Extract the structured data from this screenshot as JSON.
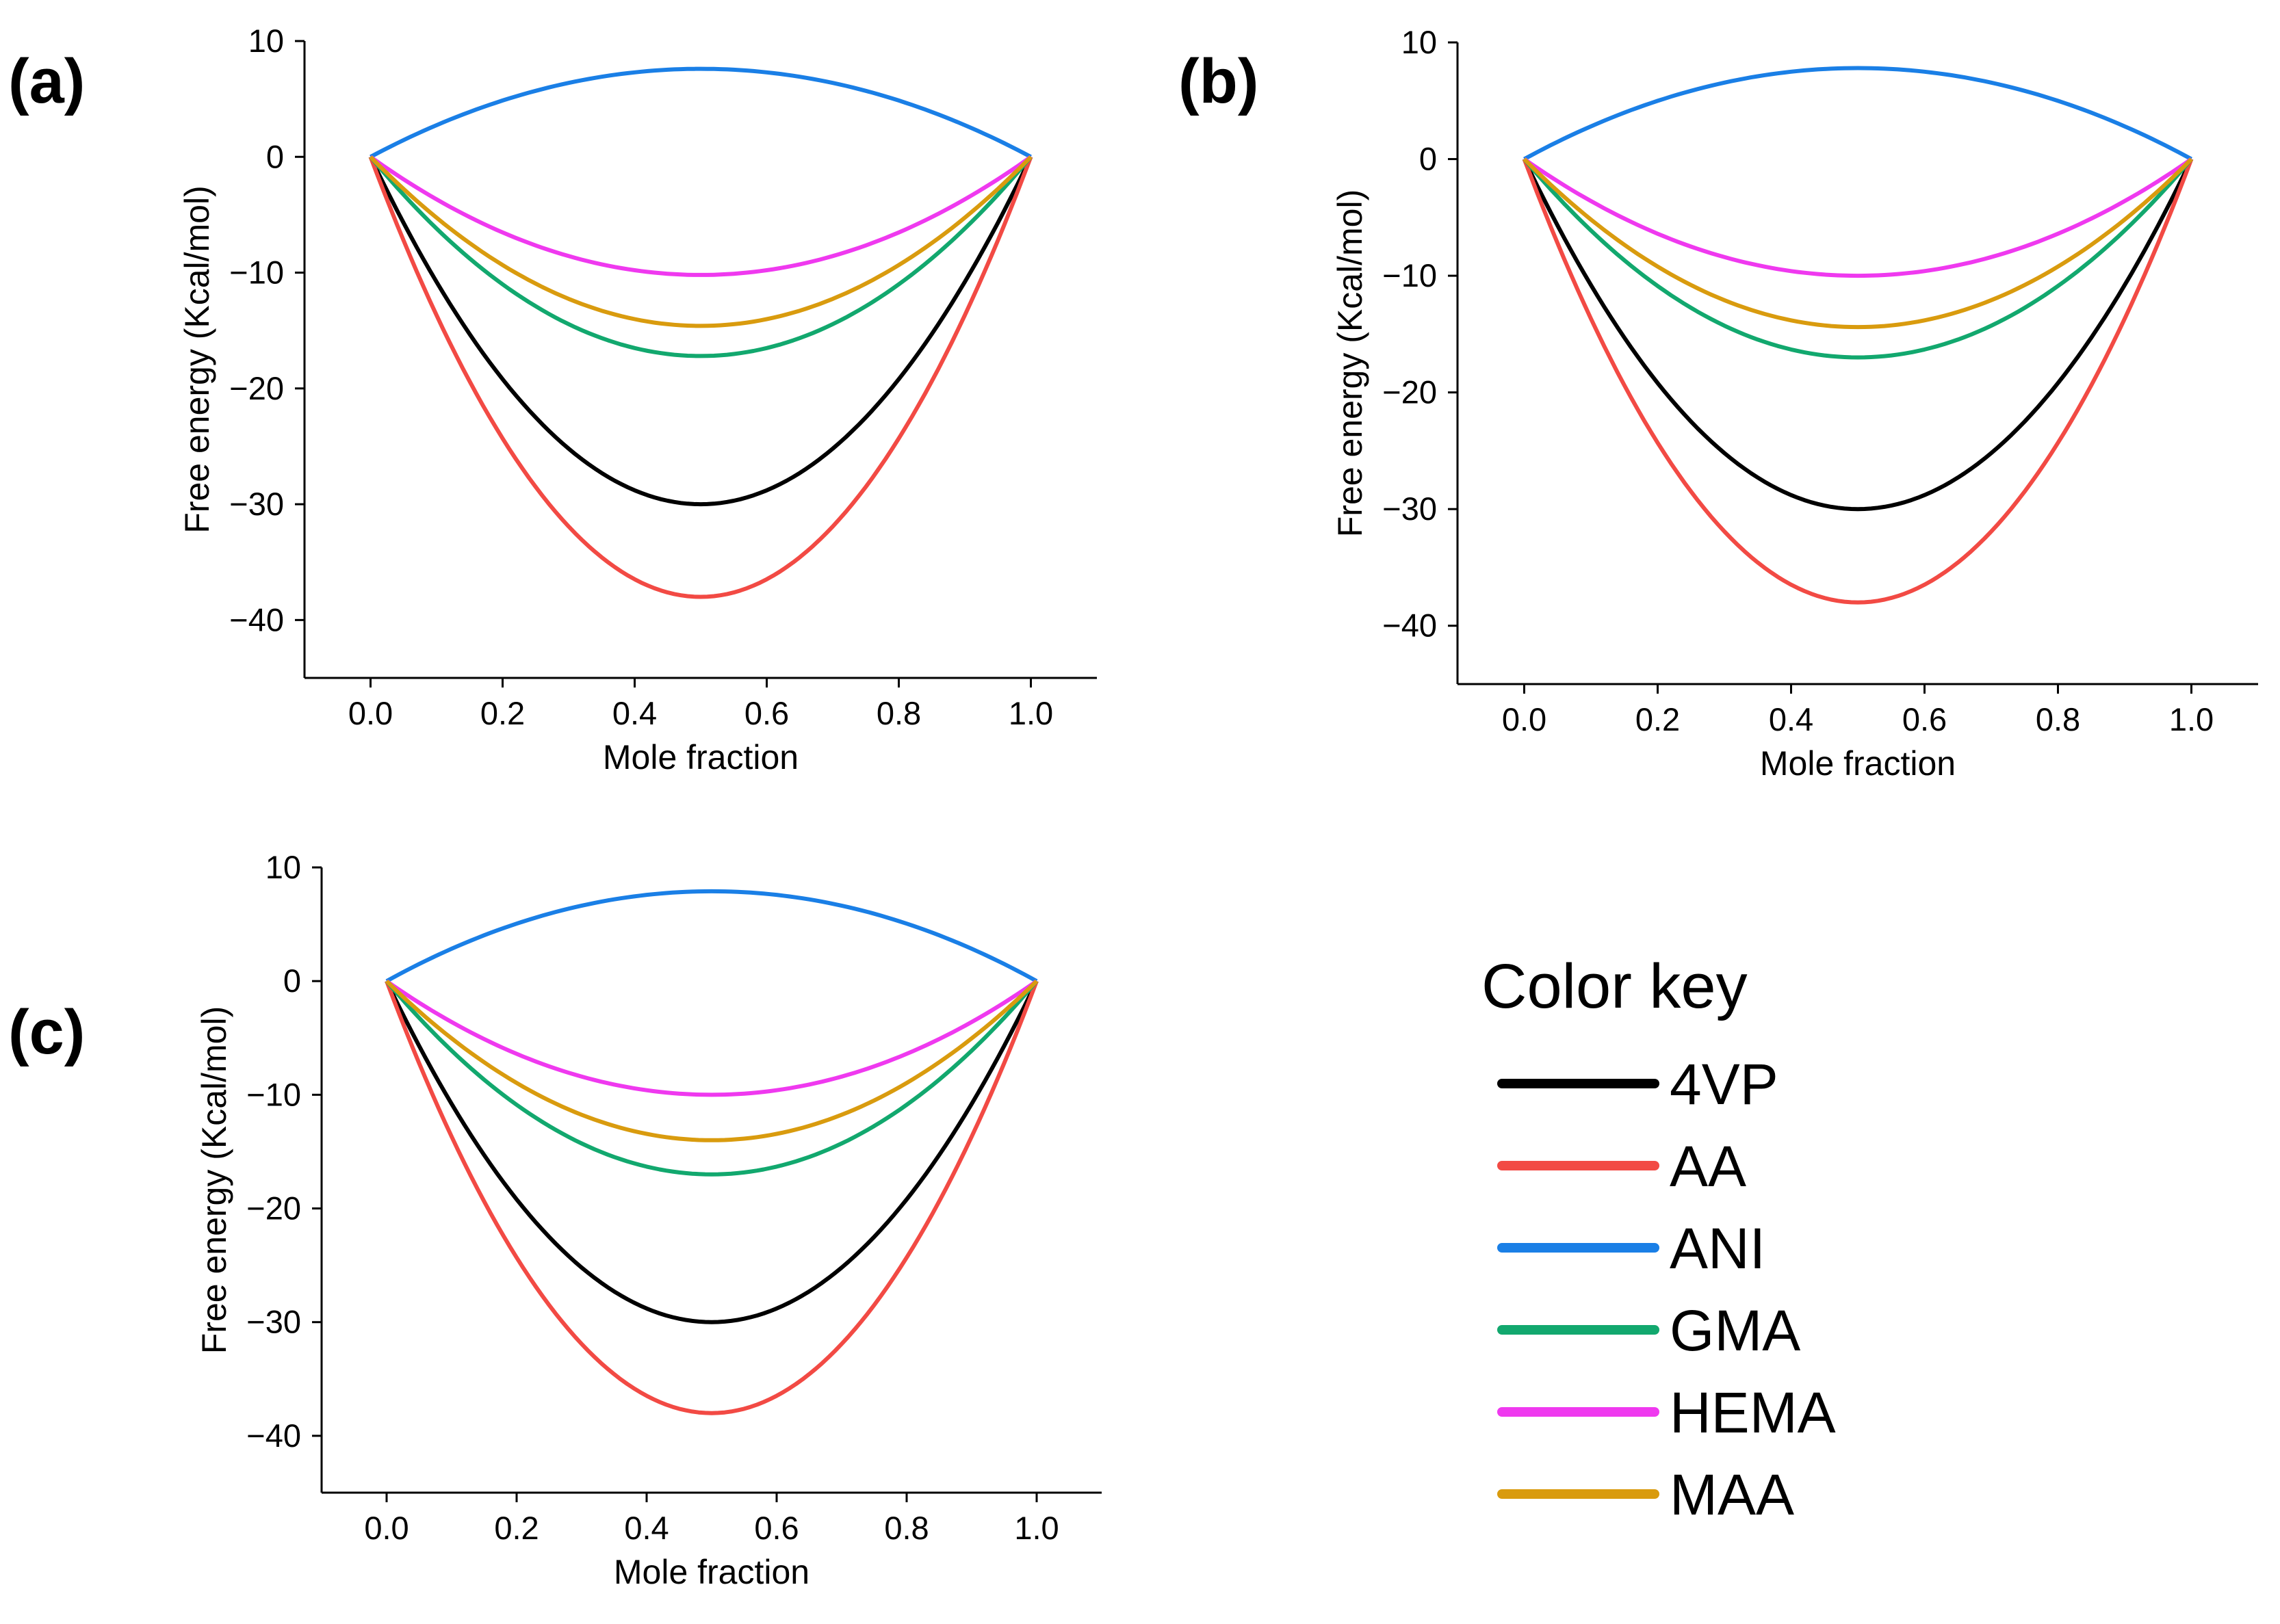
{
  "legend": {
    "title": "Color key",
    "entries": [
      {
        "label": "4VP",
        "color": "#000000"
      },
      {
        "label": "AA",
        "color": "#f24a44"
      },
      {
        "label": "ANI",
        "color": "#1a7fe6"
      },
      {
        "label": "GMA",
        "color": "#12a86e"
      },
      {
        "label": "HEMA",
        "color": "#ef39ef"
      },
      {
        "label": "MAA",
        "color": "#d99b0e"
      }
    ]
  },
  "chart_data": [
    {
      "panel": "(a)",
      "type": "line",
      "xlabel": "Mole fraction",
      "ylabel": "Free energy (Kcal/mol)",
      "xlim": [
        -0.1,
        1.1
      ],
      "ylim": [
        -45,
        10
      ],
      "xticks": [
        "0.0",
        "0.2",
        "0.4",
        "0.6",
        "0.8",
        "1.0"
      ],
      "yticks": [
        "10",
        "0",
        "−10",
        "−20",
        "−30",
        "−40"
      ],
      "x": [
        0,
        0.1,
        0.2,
        0.3,
        0.4,
        0.5,
        0.6,
        0.7,
        0.8,
        0.9,
        1.0
      ],
      "series": [
        {
          "name": "4VP",
          "color": "#000000",
          "values": [
            0,
            -10.8,
            -19.2,
            -25.2,
            -28.8,
            -30.0,
            -28.8,
            -25.2,
            -19.2,
            -10.8,
            0
          ]
        },
        {
          "name": "AA",
          "color": "#f24a44",
          "values": [
            0,
            -13.7,
            -24.3,
            -31.9,
            -36.5,
            -38.0,
            -36.5,
            -31.9,
            -24.3,
            -13.7,
            0
          ]
        },
        {
          "name": "ANI",
          "color": "#1a7fe6",
          "values": [
            0,
            2.7,
            4.9,
            6.4,
            7.3,
            7.6,
            7.3,
            6.4,
            4.9,
            2.7,
            0
          ]
        },
        {
          "name": "GMA",
          "color": "#12a86e",
          "values": [
            0,
            -6.2,
            -11.0,
            -14.4,
            -16.5,
            -17.2,
            -16.5,
            -14.4,
            -11.0,
            -6.2,
            0
          ]
        },
        {
          "name": "HEMA",
          "color": "#ef39ef",
          "values": [
            0,
            -3.7,
            -6.5,
            -8.6,
            -9.8,
            -10.2,
            -9.8,
            -8.6,
            -6.5,
            -3.7,
            0
          ]
        },
        {
          "name": "MAA",
          "color": "#d99b0e",
          "values": [
            0,
            -5.3,
            -9.3,
            -12.3,
            -14.0,
            -14.6,
            -14.0,
            -12.3,
            -9.3,
            -5.3,
            0
          ]
        }
      ]
    },
    {
      "panel": "(b)",
      "type": "line",
      "xlabel": "Mole fraction",
      "ylabel": "Free energy (Kcal/mol)",
      "xlim": [
        -0.1,
        1.1
      ],
      "ylim": [
        -45,
        10
      ],
      "xticks": [
        "0.0",
        "0.2",
        "0.4",
        "0.6",
        "0.8",
        "1.0"
      ],
      "yticks": [
        "10",
        "0",
        "−10",
        "−20",
        "−30",
        "−40"
      ],
      "x": [
        0,
        0.1,
        0.2,
        0.3,
        0.4,
        0.5,
        0.6,
        0.7,
        0.8,
        0.9,
        1.0
      ],
      "series": [
        {
          "name": "4VP",
          "color": "#000000",
          "values": [
            0,
            -10.8,
            -19.2,
            -25.2,
            -28.8,
            -30.0,
            -28.8,
            -25.2,
            -19.2,
            -10.8,
            0
          ]
        },
        {
          "name": "AA",
          "color": "#f24a44",
          "values": [
            0,
            -13.7,
            -24.3,
            -31.9,
            -36.5,
            -38.0,
            -36.5,
            -31.9,
            -24.3,
            -13.7,
            0
          ]
        },
        {
          "name": "ANI",
          "color": "#1a7fe6",
          "values": [
            0,
            2.8,
            5.0,
            6.6,
            7.5,
            7.8,
            7.5,
            6.6,
            5.0,
            2.8,
            0
          ]
        },
        {
          "name": "GMA",
          "color": "#12a86e",
          "values": [
            0,
            -6.1,
            -10.9,
            -14.3,
            -16.3,
            -17.0,
            -16.3,
            -14.3,
            -10.9,
            -6.1,
            0
          ]
        },
        {
          "name": "HEMA",
          "color": "#ef39ef",
          "values": [
            0,
            -3.6,
            -6.4,
            -8.4,
            -9.6,
            -10.0,
            -9.6,
            -8.4,
            -6.4,
            -3.6,
            0
          ]
        },
        {
          "name": "MAA",
          "color": "#d99b0e",
          "values": [
            0,
            -5.2,
            -9.2,
            -12.1,
            -13.8,
            -14.4,
            -13.8,
            -12.1,
            -9.2,
            -5.2,
            0
          ]
        }
      ]
    },
    {
      "panel": "(c)",
      "type": "line",
      "xlabel": "Mole fraction",
      "ylabel": "Free energy (Kcal/mol)",
      "xlim": [
        -0.1,
        1.1
      ],
      "ylim": [
        -45,
        10
      ],
      "xticks": [
        "0.0",
        "0.2",
        "0.4",
        "0.6",
        "0.8",
        "1.0"
      ],
      "yticks": [
        "10",
        "0",
        "−10",
        "−20",
        "−30",
        "−40"
      ],
      "x": [
        0,
        0.1,
        0.2,
        0.3,
        0.4,
        0.5,
        0.6,
        0.7,
        0.8,
        0.9,
        1.0
      ],
      "series": [
        {
          "name": "4VP",
          "color": "#000000",
          "values": [
            0,
            -10.8,
            -19.2,
            -25.2,
            -28.8,
            -30.0,
            -28.8,
            -25.2,
            -19.2,
            -10.8,
            0
          ]
        },
        {
          "name": "AA",
          "color": "#f24a44",
          "values": [
            0,
            -13.7,
            -24.3,
            -31.9,
            -36.5,
            -38.0,
            -36.5,
            -31.9,
            -24.3,
            -13.7,
            0
          ]
        },
        {
          "name": "ANI",
          "color": "#1a7fe6",
          "values": [
            0,
            2.8,
            5.1,
            6.7,
            7.6,
            7.9,
            7.6,
            6.7,
            5.1,
            2.8,
            0
          ]
        },
        {
          "name": "GMA",
          "color": "#12a86e",
          "values": [
            0,
            -6.1,
            -10.9,
            -14.3,
            -16.3,
            -17.0,
            -16.3,
            -14.3,
            -10.9,
            -6.1,
            0
          ]
        },
        {
          "name": "HEMA",
          "color": "#ef39ef",
          "values": [
            0,
            -3.6,
            -6.4,
            -8.4,
            -9.6,
            -10.0,
            -9.6,
            -8.4,
            -6.4,
            -3.6,
            0
          ]
        },
        {
          "name": "MAA",
          "color": "#d99b0e",
          "values": [
            0,
            -5.0,
            -9.0,
            -11.8,
            -13.4,
            -14.0,
            -13.4,
            -11.8,
            -9.0,
            -5.0,
            0
          ]
        }
      ]
    }
  ]
}
